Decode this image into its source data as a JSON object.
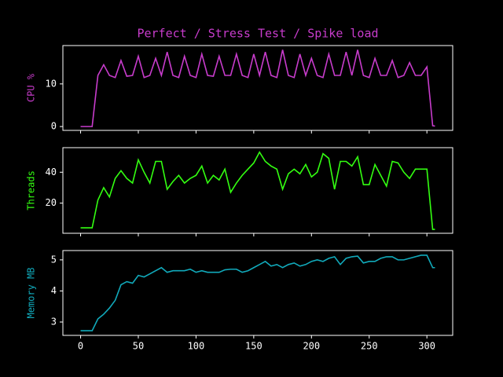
{
  "chart_data": [
    {
      "type": "line",
      "title": "Perfect / Stress Test / Spike load",
      "ylabel": "CPU %",
      "color": "#c83ccc",
      "x": [
        0,
        5,
        10,
        15,
        20,
        25,
        30,
        35,
        40,
        45,
        50,
        55,
        60,
        65,
        70,
        75,
        80,
        85,
        90,
        95,
        100,
        105,
        110,
        115,
        120,
        125,
        130,
        135,
        140,
        145,
        150,
        155,
        160,
        165,
        170,
        175,
        180,
        185,
        190,
        195,
        200,
        205,
        210,
        215,
        220,
        225,
        230,
        235,
        240,
        245,
        250,
        255,
        260,
        265,
        270,
        275,
        280,
        285,
        290,
        295,
        300,
        305,
        307
      ],
      "values": [
        0,
        0,
        0,
        12,
        14.5,
        12,
        11.5,
        15.5,
        11.8,
        12,
        16.5,
        11.5,
        12,
        16,
        12,
        17.5,
        12,
        11.5,
        16.5,
        12,
        11.5,
        17,
        12,
        11.8,
        16.5,
        12,
        12,
        17,
        12,
        11.5,
        17,
        12,
        17.5,
        12,
        11.5,
        18,
        12,
        11.5,
        17,
        12,
        16,
        12,
        11.5,
        17,
        12,
        12,
        17.5,
        12,
        18,
        12,
        11.5,
        16,
        12,
        12,
        15.5,
        11.5,
        12,
        15,
        12,
        12,
        14,
        0.2,
        0.1
      ],
      "xlim": [
        -15.35,
        322.35
      ],
      "ylim": [
        -0.9,
        19.0
      ],
      "yticks": [
        0,
        10
      ]
    },
    {
      "type": "line",
      "ylabel": "Threads",
      "color": "#33ff11",
      "x": [
        0,
        5,
        10,
        15,
        20,
        25,
        30,
        35,
        40,
        45,
        50,
        55,
        60,
        65,
        70,
        75,
        80,
        85,
        90,
        95,
        100,
        105,
        110,
        115,
        120,
        125,
        130,
        135,
        140,
        145,
        150,
        155,
        160,
        165,
        170,
        175,
        180,
        185,
        190,
        195,
        200,
        205,
        210,
        215,
        220,
        225,
        230,
        235,
        240,
        245,
        250,
        255,
        260,
        265,
        270,
        275,
        280,
        285,
        290,
        295,
        300,
        305,
        307
      ],
      "values": [
        4,
        4,
        4,
        22,
        30,
        24,
        36,
        41,
        36,
        33,
        48,
        40,
        33,
        47,
        47,
        29,
        34,
        38,
        33,
        36,
        38,
        44,
        33,
        38,
        35,
        42,
        27,
        33,
        38,
        42,
        46,
        53,
        47,
        44,
        42,
        29,
        39,
        42,
        39,
        45,
        37,
        40,
        52,
        49,
        29,
        47,
        47,
        44,
        50,
        32,
        32,
        45,
        38,
        31,
        47,
        46,
        40,
        36,
        42,
        42,
        42,
        3,
        3
      ],
      "xlim": [
        -15.35,
        322.35
      ],
      "ylim": [
        0.5,
        55.9
      ],
      "yticks": [
        20,
        40
      ]
    },
    {
      "type": "line",
      "ylabel": "Memory MB",
      "color": "#11aabb",
      "x": [
        0,
        5,
        10,
        15,
        20,
        25,
        30,
        35,
        40,
        45,
        50,
        55,
        60,
        65,
        70,
        75,
        80,
        85,
        90,
        95,
        100,
        105,
        110,
        115,
        120,
        125,
        130,
        135,
        140,
        145,
        150,
        155,
        160,
        165,
        170,
        175,
        180,
        185,
        190,
        195,
        200,
        205,
        210,
        215,
        220,
        225,
        230,
        235,
        240,
        245,
        250,
        255,
        260,
        265,
        270,
        275,
        280,
        285,
        290,
        295,
        300,
        305,
        307
      ],
      "values": [
        2.72,
        2.72,
        2.72,
        3.1,
        3.25,
        3.45,
        3.7,
        4.2,
        4.3,
        4.25,
        4.5,
        4.45,
        4.55,
        4.65,
        4.75,
        4.6,
        4.65,
        4.65,
        4.65,
        4.7,
        4.6,
        4.65,
        4.6,
        4.6,
        4.6,
        4.68,
        4.7,
        4.7,
        4.6,
        4.65,
        4.75,
        4.85,
        4.95,
        4.8,
        4.85,
        4.75,
        4.85,
        4.9,
        4.8,
        4.85,
        4.95,
        5.0,
        4.95,
        5.05,
        5.1,
        4.85,
        5.05,
        5.1,
        5.12,
        4.9,
        4.95,
        4.95,
        5.05,
        5.1,
        5.1,
        5.0,
        5.0,
        5.05,
        5.1,
        5.15,
        5.15,
        4.75,
        4.75
      ],
      "xlim": [
        -15.35,
        322.35
      ],
      "ylim": [
        2.57,
        5.3
      ],
      "yticks": [
        3,
        4,
        5
      ],
      "xticks": [
        0,
        50,
        100,
        150,
        200,
        250,
        300
      ]
    }
  ]
}
